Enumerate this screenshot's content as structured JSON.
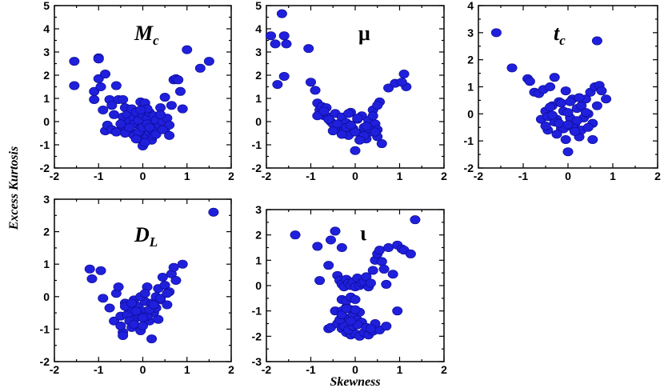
{
  "figure": {
    "ylabel": "Excess Kurtosis",
    "xlabel": "Skewness",
    "colors": {
      "marker": "#1f1fdc",
      "marker_edge": "#0a0a8a",
      "axes": "#000000"
    }
  },
  "chart_data": [
    {
      "type": "scatter",
      "label_main": "M",
      "label_sub": "c",
      "xlim": [
        -2,
        2
      ],
      "ylim": [
        -2,
        5
      ],
      "xticks": [
        "-2",
        "-1",
        "0",
        "1",
        "2"
      ],
      "yticks": [
        "-2",
        "-1",
        "0",
        "1",
        "2",
        "3",
        "4",
        "5"
      ],
      "x": [
        -1.55,
        -1.55,
        -1.0,
        -1.0,
        -1.0,
        -1.1,
        -1.1,
        -0.95,
        -0.9,
        -0.85,
        -0.85,
        -0.75,
        -0.7,
        -0.65,
        -0.6,
        -0.55,
        -0.5,
        -0.45,
        -0.45,
        -0.4,
        -0.4,
        -0.35,
        -0.3,
        -0.3,
        -0.25,
        -0.25,
        -0.2,
        -0.2,
        -0.15,
        -0.15,
        -0.1,
        -0.1,
        -0.05,
        -0.05,
        0.0,
        0.0,
        0.0,
        0.05,
        0.05,
        0.1,
        0.1,
        0.15,
        0.15,
        0.2,
        0.2,
        0.25,
        0.25,
        0.3,
        0.3,
        0.35,
        0.4,
        0.45,
        0.5,
        0.5,
        0.55,
        0.6,
        0.65,
        0.7,
        0.75,
        0.8,
        0.85,
        0.9,
        1.0,
        1.3,
        1.5,
        -0.8,
        -0.7,
        -0.6,
        -0.5,
        -0.4,
        -0.3,
        -0.2,
        -0.1,
        0.0,
        0.1,
        0.2,
        0.3,
        0.4,
        0.1,
        -0.05,
        0.05,
        0.15,
        -0.15,
        0.6,
        0.45
      ],
      "y": [
        2.6,
        1.55,
        2.75,
        2.7,
        1.85,
        1.3,
        0.95,
        1.5,
        0.5,
        2.05,
        -0.4,
        0.95,
        0.7,
        0.3,
        1.55,
        0.95,
        -0.35,
        0.95,
        0.2,
        -0.2,
        0.6,
        0.3,
        -0.35,
        0.0,
        0.55,
        -0.5,
        0.15,
        -0.1,
        -0.55,
        0.4,
        -0.75,
        0.05,
        -0.3,
        0.85,
        -1.05,
        -0.5,
        0.3,
        -0.2,
        0.8,
        -0.65,
        0.15,
        -0.45,
        0.4,
        -0.15,
        -0.8,
        0.25,
        -0.6,
        0.05,
        -0.4,
        -0.25,
        0.6,
        0.0,
        -0.35,
        1.05,
        0.15,
        -0.15,
        0.7,
        1.8,
        1.85,
        1.8,
        1.3,
        0.55,
        3.1,
        2.3,
        2.6,
        -0.15,
        -0.35,
        -0.45,
        -0.1,
        -0.5,
        -0.25,
        -0.6,
        -0.45,
        -0.25,
        -0.1,
        -0.35,
        -0.55,
        0.3,
        0.55,
        0.5,
        -0.9,
        -0.25,
        -0.75,
        -0.6,
        -0.35
      ]
    },
    {
      "type": "scatter",
      "label_main": "μ",
      "label_sub": "",
      "xlim": [
        -2,
        2
      ],
      "ylim": [
        -2,
        5
      ],
      "xticks": [
        "-2",
        "-1",
        "0",
        "1",
        "2"
      ],
      "yticks": [
        "-2",
        "-1",
        "0",
        "1",
        "2",
        "3",
        "4",
        "5"
      ],
      "x": [
        -1.9,
        -1.8,
        -1.65,
        -1.6,
        -1.55,
        -1.6,
        -1.75,
        -1.05,
        -1.0,
        -0.9,
        -0.85,
        -0.8,
        -0.75,
        -0.7,
        -0.65,
        -0.6,
        -0.55,
        -0.5,
        -0.45,
        -0.4,
        -0.35,
        -0.3,
        -0.25,
        -0.2,
        -0.15,
        -0.1,
        -0.05,
        0.0,
        0.05,
        0.1,
        0.15,
        0.2,
        0.25,
        0.3,
        0.35,
        0.4,
        0.45,
        0.5,
        0.55,
        0.6,
        0.75,
        0.9,
        1.1,
        1.15,
        -0.85,
        -0.6,
        -0.4,
        -0.2,
        0.0,
        0.2,
        0.4,
        -0.5,
        -0.3,
        -0.1,
        0.1,
        0.3,
        0.5,
        -0.15,
        0.05,
        0.25,
        0.45,
        1.05,
        0.5,
        -0.7
      ],
      "y": [
        3.7,
        3.35,
        4.65,
        3.7,
        3.35,
        1.95,
        1.6,
        3.15,
        1.7,
        1.35,
        0.8,
        0.5,
        0.65,
        0.25,
        0.6,
        0.2,
        0.0,
        -0.1,
        0.35,
        -0.35,
        -0.1,
        0.2,
        -0.4,
        -0.05,
        -0.6,
        0.4,
        -0.3,
        -1.25,
        0.1,
        -0.5,
        0.25,
        -0.25,
        -0.75,
        0.05,
        -0.45,
        0.5,
        -0.1,
        -0.35,
        0.85,
        -0.95,
        1.45,
        1.65,
        2.05,
        1.5,
        0.25,
        0.1,
        -0.1,
        -0.25,
        -0.45,
        -0.6,
        0.25,
        -0.4,
        -0.55,
        -0.15,
        -0.8,
        -0.3,
        -0.65,
        0.35,
        0.15,
        -0.2,
        -0.45,
        1.7,
        0.7,
        0.45
      ]
    },
    {
      "type": "scatter",
      "label_main": "t",
      "label_sub": "c",
      "xlim": [
        -2,
        2
      ],
      "ylim": [
        -2,
        4
      ],
      "xticks": [
        "-2",
        "-1",
        "0",
        "1",
        "2"
      ],
      "yticks": [
        "-2",
        "-1",
        "0",
        "1",
        "2",
        "3",
        "4"
      ],
      "x": [
        -1.6,
        -1.25,
        -0.9,
        -0.85,
        -0.75,
        -0.65,
        -0.6,
        -0.55,
        -0.5,
        -0.45,
        -0.4,
        -0.35,
        -0.3,
        -0.25,
        -0.2,
        -0.15,
        -0.1,
        -0.05,
        0.0,
        0.05,
        0.1,
        0.15,
        0.2,
        0.25,
        0.3,
        0.35,
        0.4,
        0.45,
        0.5,
        0.55,
        0.6,
        0.65,
        0.7,
        0.75,
        0.85,
        0.65,
        -0.5,
        -0.3,
        -0.1,
        0.1,
        0.3,
        -0.4,
        -0.2,
        0.0,
        0.2,
        0.4,
        -0.25,
        -0.05,
        0.15,
        0.55,
        0.45,
        -0.45,
        -0.15,
        0.05,
        0.25,
        0.0,
        -0.35
      ],
      "y": [
        3.0,
        1.7,
        1.3,
        1.2,
        0.8,
        0.75,
        -0.2,
        0.9,
        0.1,
        -0.6,
        1.0,
        0.3,
        1.35,
        -0.2,
        0.45,
        -0.55,
        0.1,
        0.85,
        -1.4,
        -0.15,
        0.55,
        -0.4,
        0.2,
        -0.85,
        0.3,
        -0.15,
        0.55,
        0.0,
        0.8,
        -0.35,
        1.0,
        0.3,
        1.05,
        0.85,
        0.55,
        2.7,
        -0.45,
        -0.3,
        -0.55,
        -0.5,
        -0.6,
        0.25,
        -0.35,
        0.05,
        -0.25,
        0.05,
        -0.75,
        -0.95,
        -0.65,
        -0.95,
        -0.5,
        -0.1,
        0.4,
        0.45,
        0.6,
        -0.4,
        -0.05
      ]
    },
    {
      "type": "scatter",
      "label_main": "D",
      "label_sub": "L",
      "xlim": [
        -2,
        2
      ],
      "ylim": [
        -2,
        3
      ],
      "xticks": [
        "-2",
        "-1",
        "0",
        "1",
        "2"
      ],
      "yticks": [
        "-2",
        "-1",
        "0",
        "1",
        "2",
        "3"
      ],
      "x": [
        -1.2,
        -1.15,
        -0.95,
        -0.9,
        -0.75,
        -0.65,
        -0.6,
        -0.55,
        -0.5,
        -0.45,
        -0.4,
        -0.35,
        -0.3,
        -0.25,
        -0.2,
        -0.15,
        -0.1,
        -0.05,
        0.0,
        0.05,
        0.1,
        0.15,
        0.2,
        0.25,
        0.3,
        0.35,
        0.4,
        0.45,
        0.5,
        0.55,
        0.6,
        0.65,
        0.7,
        0.75,
        0.9,
        1.6,
        -0.5,
        -0.3,
        -0.1,
        0.1,
        0.3,
        -0.4,
        -0.2,
        0.0,
        0.2,
        0.4,
        -0.25,
        -0.05,
        0.15,
        0.35,
        0.55,
        0.0,
        -0.45,
        -0.15,
        0.25,
        0.05
      ],
      "y": [
        0.85,
        0.55,
        0.8,
        -0.05,
        -0.35,
        -0.75,
        0.1,
        0.3,
        -0.6,
        -1.1,
        -0.2,
        -0.55,
        -0.35,
        -0.95,
        -0.1,
        -0.65,
        -0.3,
        -1.05,
        -0.45,
        -0.15,
        0.3,
        -0.75,
        -0.2,
        -0.5,
        0.0,
        0.25,
        -0.1,
        0.6,
        0.35,
        -0.25,
        0.15,
        0.7,
        0.9,
        0.5,
        1.0,
        2.6,
        -0.9,
        -0.75,
        -0.55,
        -0.6,
        -0.35,
        -0.3,
        -0.85,
        -0.9,
        -1.3,
        -0.05,
        -0.2,
        0.0,
        -0.4,
        -0.7,
        0.1,
        -0.65,
        -1.2,
        -0.45,
        -0.25,
        0.1
      ]
    },
    {
      "type": "scatter",
      "label_main": "ι",
      "label_sub": "",
      "xlim": [
        -2,
        2
      ],
      "ylim": [
        -3,
        3
      ],
      "xticks": [
        "-2",
        "-1",
        "0",
        "1",
        "2"
      ],
      "yticks": [
        "-3",
        "-2",
        "-1",
        "0",
        "1",
        "2",
        "3"
      ],
      "x": [
        -1.35,
        -0.85,
        -0.8,
        -0.6,
        -0.55,
        -0.45,
        -0.4,
        -0.35,
        -0.3,
        -0.25,
        -0.2,
        -0.15,
        -0.1,
        -0.05,
        0.0,
        0.05,
        0.1,
        0.15,
        0.2,
        0.25,
        0.3,
        0.35,
        0.4,
        0.45,
        0.5,
        0.55,
        0.6,
        0.65,
        0.7,
        0.75,
        0.85,
        0.95,
        1.05,
        1.1,
        1.25,
        1.35,
        -0.3,
        0.95,
        -0.45,
        -0.6,
        -0.55,
        -0.4,
        -0.3,
        -0.2,
        -0.1,
        0.0,
        0.1,
        0.2,
        0.3,
        0.4,
        0.55,
        0.7,
        -0.3,
        -0.2,
        -0.1,
        0.0,
        0.1,
        -0.25,
        -0.15,
        -0.05,
        0.05,
        0.15,
        -0.3,
        -0.2,
        -0.1,
        0.0,
        -0.25,
        -0.15,
        -0.05,
        0.05,
        0.25,
        0.45,
        -0.35,
        0.35,
        -0.3,
        0.0,
        -0.2,
        -0.1
      ],
      "y": [
        2.0,
        1.55,
        0.2,
        0.8,
        1.8,
        2.15,
        0.4,
        0.2,
        0.05,
        -0.05,
        0.25,
        0.1,
        0.0,
        0.15,
        -0.05,
        0.3,
        0.0,
        0.1,
        0.15,
        0.35,
        -0.05,
        0.1,
        0.6,
        1.0,
        1.25,
        1.4,
        0.95,
        0.65,
        0.05,
        1.5,
        0.45,
        1.6,
        1.45,
        1.4,
        1.25,
        2.6,
        1.5,
        -1.0,
        -1.0,
        -1.7,
        -1.65,
        -1.5,
        -1.7,
        -1.85,
        -1.95,
        -1.9,
        -2.0,
        -1.85,
        -1.95,
        -1.8,
        -1.75,
        -1.6,
        -1.0,
        -0.85,
        -0.95,
        -1.1,
        -1.05,
        -1.25,
        -1.3,
        -1.2,
        -1.35,
        -1.45,
        -0.55,
        -0.6,
        -0.45,
        -0.55,
        -1.6,
        -1.75,
        -1.6,
        -1.55,
        -1.65,
        -1.5,
        -1.35,
        -1.7,
        -1.15,
        -0.95,
        -0.9,
        -1.4
      ]
    }
  ]
}
